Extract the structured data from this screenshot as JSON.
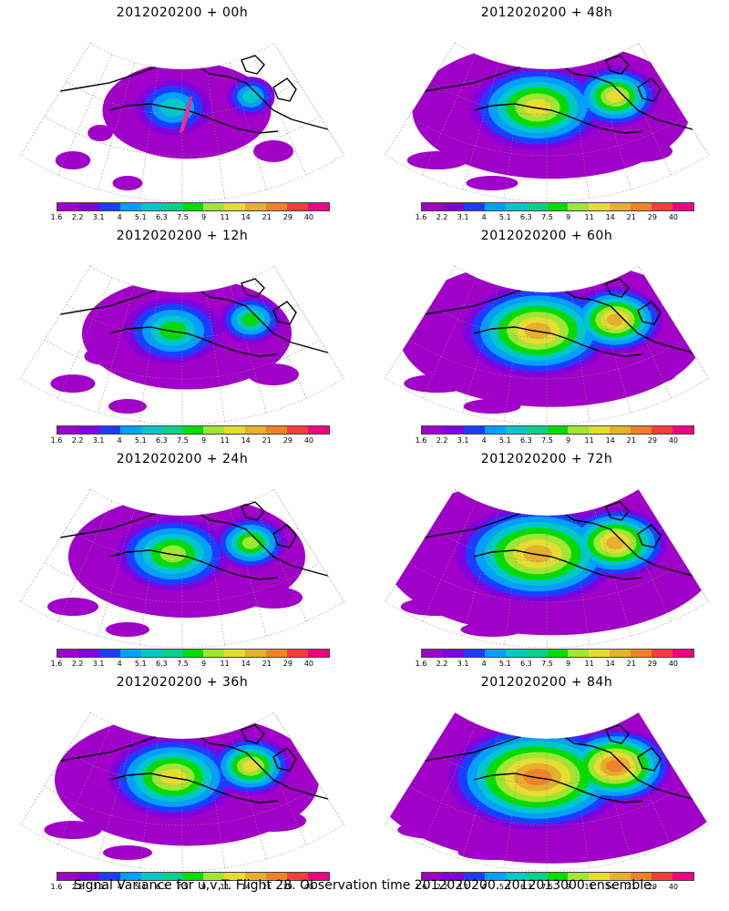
{
  "panels": [
    {
      "title": "2012020200 + 00h",
      "level": 0.15
    },
    {
      "title": "2012020200 + 48h",
      "level": 0.55
    },
    {
      "title": "2012020200 + 12h",
      "level": 0.3
    },
    {
      "title": "2012020200 + 60h",
      "level": 0.65
    },
    {
      "title": "2012020200 + 24h",
      "level": 0.4
    },
    {
      "title": "2012020200 + 72h",
      "level": 0.75
    },
    {
      "title": "2012020200 + 36h",
      "level": 0.5
    },
    {
      "title": "2012020200 + 84h",
      "level": 0.85
    }
  ],
  "colorbar": {
    "labels": [
      "1.6",
      "2.2",
      "3.1",
      "4",
      "5.1",
      "6.3",
      "7.5",
      "9",
      "11",
      "14",
      "21",
      "29",
      "40"
    ],
    "colors": [
      "#a000c8",
      "#8200dc",
      "#1e3cff",
      "#00a0ff",
      "#00c8c8",
      "#00d28c",
      "#00dc00",
      "#a0e632",
      "#e6dc32",
      "#e6af2d",
      "#f08228",
      "#fa3c3c",
      "#f00082"
    ]
  },
  "footer": "Signal Variance for u,v,T. Flight 28. Observation time 2012020200. 2012013000 ensemble."
}
